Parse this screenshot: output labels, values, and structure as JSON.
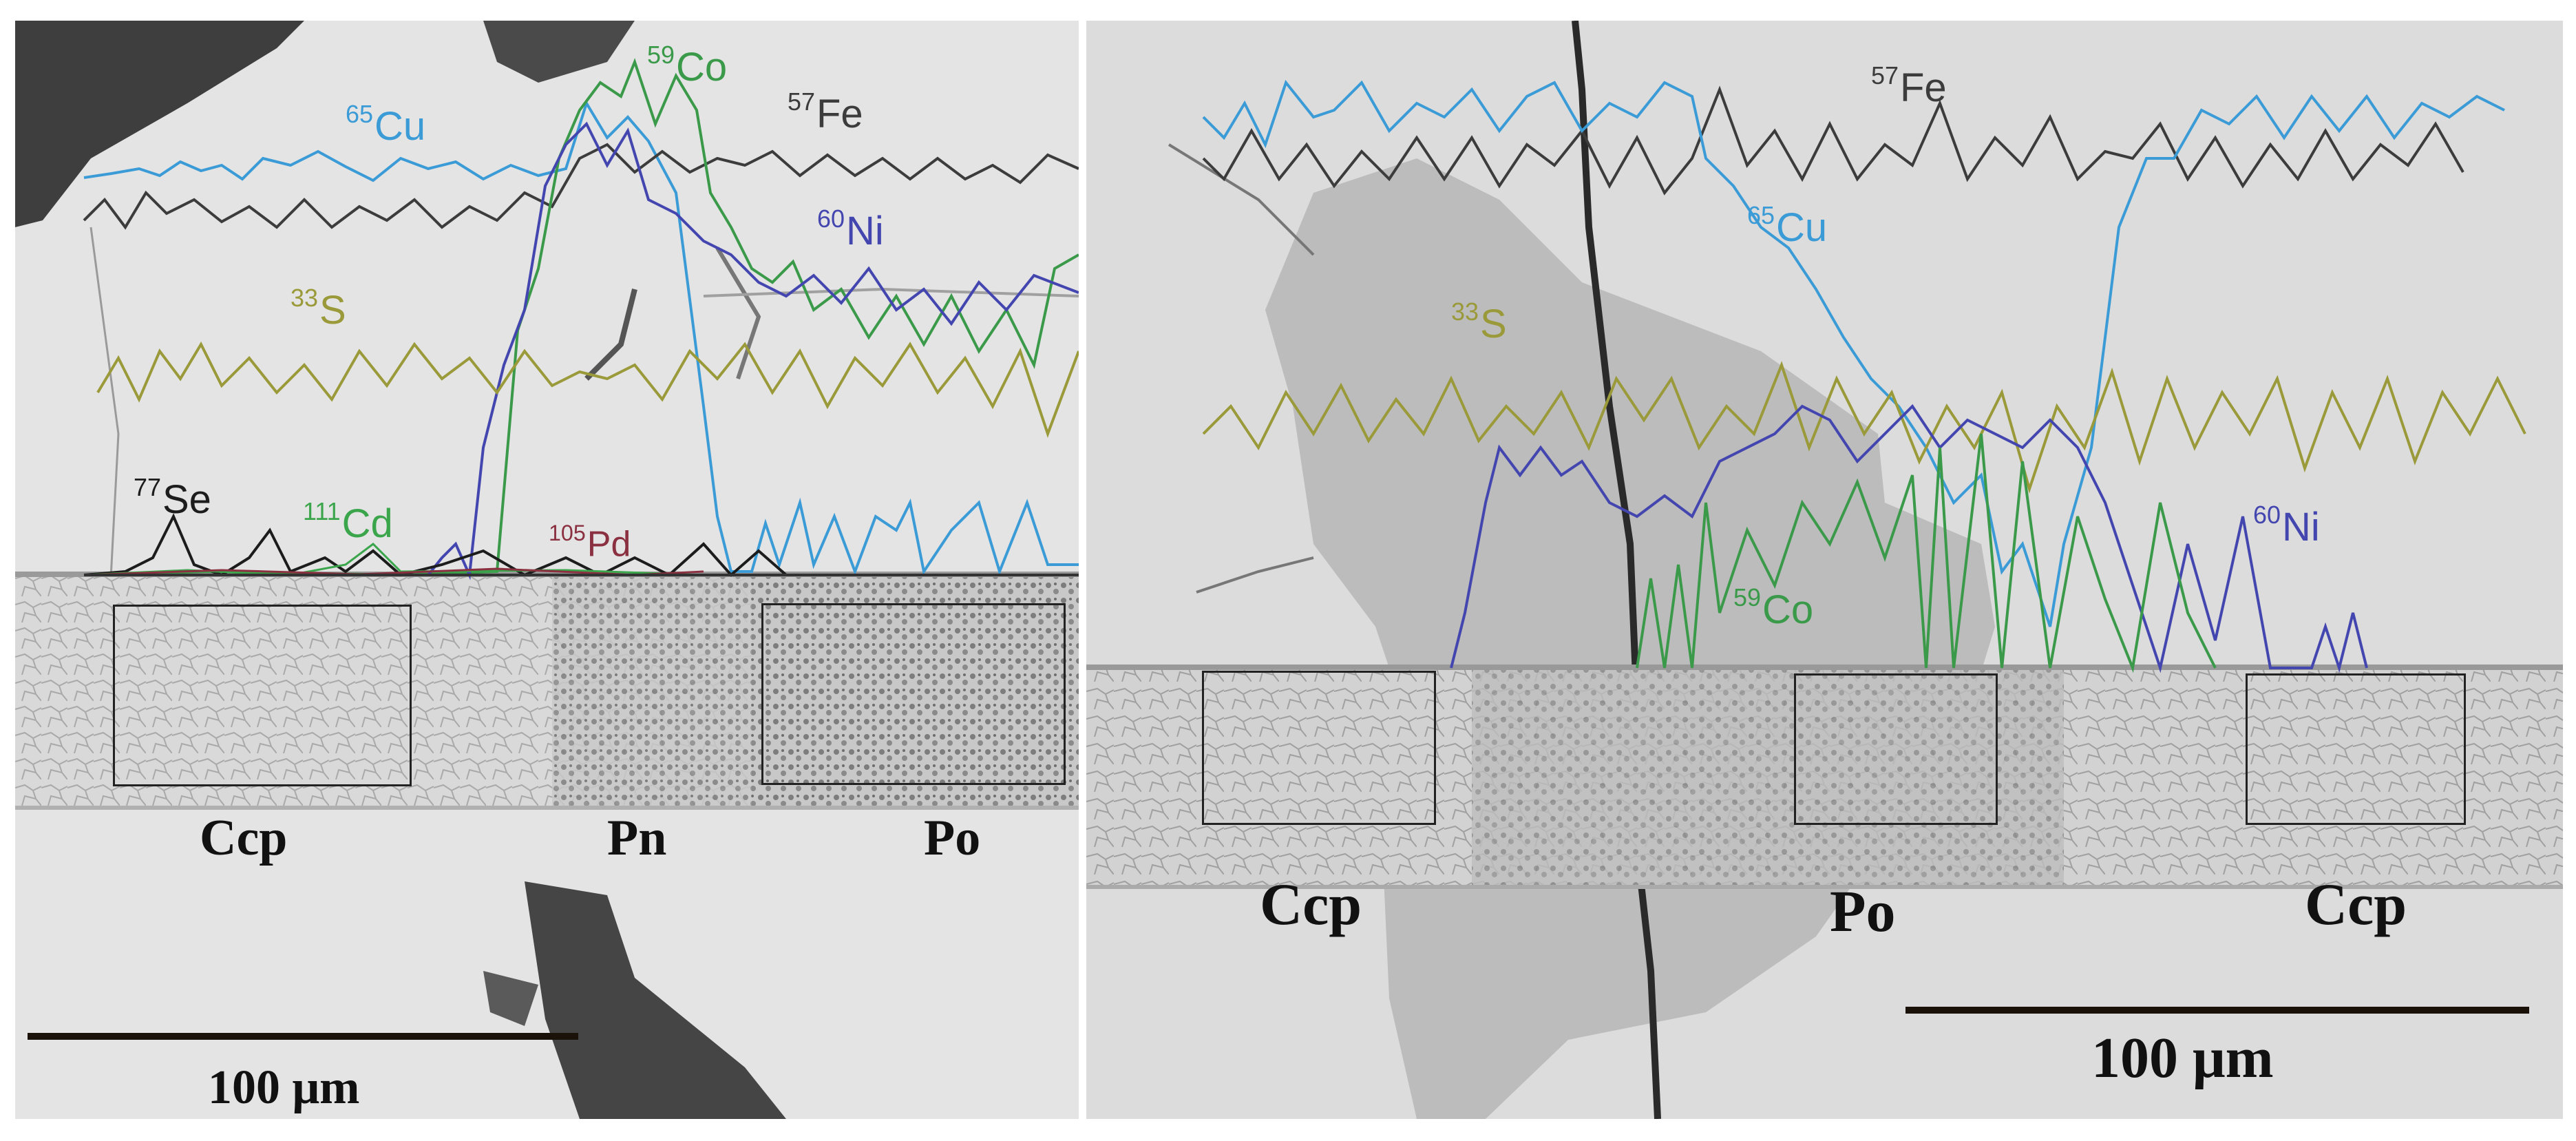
{
  "left_panel": {
    "elements": {
      "cu": {
        "sup": "65",
        "sym": "Cu",
        "color": "#3b9bd6"
      },
      "co": {
        "sup": "59",
        "sym": "Co",
        "color": "#3a9a4a"
      },
      "fe": {
        "sup": "57",
        "sym": "Fe",
        "color": "#3c3c3c"
      },
      "ni": {
        "sup": "60",
        "sym": "Ni",
        "color": "#4446b0"
      },
      "s": {
        "sup": "33",
        "sym": "S",
        "color": "#9a9a3a"
      },
      "se": {
        "sup": "77",
        "sym": "Se",
        "color": "#1c1c1c"
      },
      "cd": {
        "sup": "111",
        "sym": "Cd",
        "color": "#3aa54a"
      },
      "pd": {
        "sup": "105",
        "sym": "Pd",
        "color": "#8a3040"
      }
    },
    "phases": [
      "Ccp",
      "Pn",
      "Po"
    ],
    "scale_bar": "100 μm"
  },
  "right_panel": {
    "elements": {
      "fe": {
        "sup": "57",
        "sym": "Fe",
        "color": "#3c3c3c"
      },
      "cu": {
        "sup": "65",
        "sym": "Cu",
        "color": "#3b9bd6"
      },
      "s": {
        "sup": "33",
        "sym": "S",
        "color": "#9a9a3a"
      },
      "ni": {
        "sup": "60",
        "sym": "Ni",
        "color": "#4446b0"
      },
      "co": {
        "sup": "59",
        "sym": "Co",
        "color": "#3a9a4a"
      }
    },
    "phases": [
      "Ccp",
      "Po",
      "Ccp"
    ],
    "scale_bar": "100 μm"
  }
}
